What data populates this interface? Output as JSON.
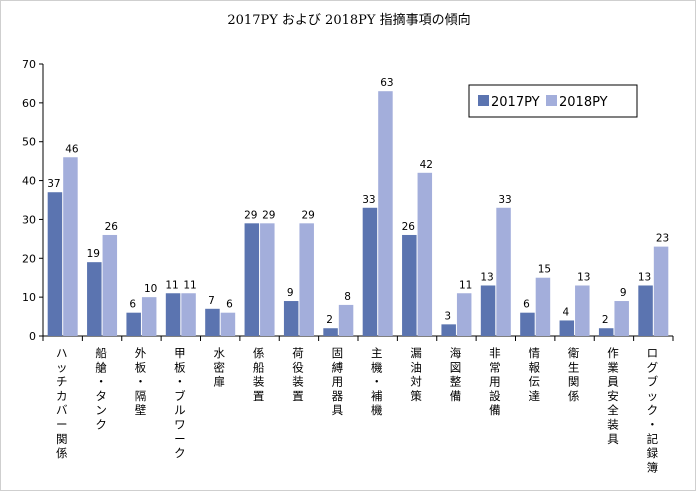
{
  "chart_data": {
    "type": "bar",
    "title": "2017PY および 2018PY 指摘事項の傾向",
    "xlabel": "",
    "ylabel": "",
    "ylim": [
      0,
      70
    ],
    "yticks": [
      0,
      10,
      20,
      30,
      40,
      50,
      60,
      70
    ],
    "grid": false,
    "legend_position": "top-right",
    "categories": [
      "ハッチカバー関係",
      "船艙・タンク",
      "外板・隔壁",
      "甲板・ブルワーク",
      "水密扉",
      "係船装置",
      "荷役装置",
      "固縛用器具",
      "主機・補機",
      "漏油対策",
      "海図整備",
      "非常用設備",
      "情報伝達",
      "衛生関係",
      "作業員安全装具",
      "ログブック・記録簿"
    ],
    "series": [
      {
        "name": "2017PY",
        "color": "#5b74b0",
        "values": [
          37,
          19,
          6,
          11,
          7,
          29,
          9,
          2,
          33,
          26,
          3,
          13,
          6,
          4,
          2,
          13
        ]
      },
      {
        "name": "2018PY",
        "color": "#a3aedb",
        "values": [
          46,
          26,
          10,
          11,
          6,
          29,
          29,
          8,
          63,
          42,
          11,
          33,
          15,
          13,
          9,
          23
        ]
      }
    ]
  }
}
